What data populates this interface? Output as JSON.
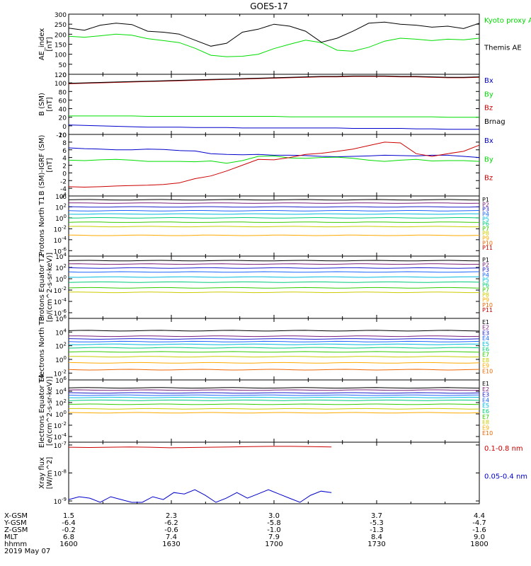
{
  "title": "GOES-17",
  "colors": {
    "black": "#000000",
    "green": "#00dd00",
    "blue": "#0000cc",
    "red": "#cc0000",
    "channels": [
      "#000000",
      "#7a1f7a",
      "#1a1acc",
      "#1a66ff",
      "#00bbdd",
      "#00cc77",
      "#33cc00",
      "#cccc00",
      "#ffaa00",
      "#ee6600",
      "#cc0000"
    ]
  },
  "chart_data": [
    {
      "type": "line",
      "id": "ae",
      "ylabel": "AE_index [nT]",
      "ylim": [
        0,
        300
      ],
      "yticks": [
        "0",
        "50",
        "100",
        "150",
        "200",
        "250",
        "300"
      ],
      "log": false,
      "series": [
        {
          "name": "Kyoto proxy AE",
          "color": "green",
          "values": [
            190,
            185,
            192,
            200,
            195,
            178,
            168,
            158,
            130,
            95,
            88,
            90,
            100,
            128,
            150,
            170,
            158,
            120,
            115,
            135,
            165,
            180,
            175,
            168,
            175,
            172,
            180
          ]
        },
        {
          "name": "Themis AE",
          "color": "black",
          "values": [
            230,
            220,
            245,
            255,
            248,
            215,
            210,
            200,
            170,
            140,
            155,
            210,
            225,
            250,
            240,
            215,
            160,
            180,
            215,
            255,
            260,
            250,
            245,
            235,
            240,
            228,
            255
          ]
        }
      ],
      "legend": [
        {
          "text": "Kyoto proxy AE",
          "color": "green"
        },
        {
          "text": "Themis AE",
          "color": "black"
        }
      ]
    },
    {
      "type": "line",
      "id": "bsm",
      "ylabel": "B (SM) [nT]",
      "ylim": [
        -20,
        120
      ],
      "yticks": [
        "-20",
        "0",
        "20",
        "40",
        "60",
        "80",
        "100",
        "120"
      ],
      "log": false,
      "series": [
        {
          "name": "Bz",
          "color": "red",
          "values": [
            98,
            99,
            100,
            101,
            102,
            103,
            104,
            105,
            106,
            107,
            108,
            109,
            110,
            111,
            112,
            113,
            114,
            114,
            115,
            115,
            115,
            114,
            114,
            113,
            112,
            112,
            113
          ]
        },
        {
          "name": "Brnag",
          "color": "black",
          "values": [
            99,
            100,
            101,
            102,
            103,
            104,
            105,
            106,
            107,
            108,
            109,
            110,
            111,
            112,
            113,
            114,
            115,
            115,
            116,
            116,
            116,
            115,
            115,
            114,
            113,
            113,
            114
          ]
        },
        {
          "name": "By",
          "color": "green",
          "values": [
            23,
            23,
            23,
            23,
            23,
            22,
            22,
            22,
            22,
            22,
            22,
            22,
            22,
            22,
            21,
            21,
            21,
            21,
            21,
            21,
            21,
            21,
            21,
            21,
            20,
            20,
            20
          ]
        },
        {
          "name": "Bx",
          "color": "blue",
          "values": [
            2,
            1,
            0,
            -1,
            -2,
            -3,
            -3,
            -3,
            -4,
            -4,
            -4,
            -5,
            -5,
            -5,
            -5,
            -5,
            -5,
            -5,
            -6,
            -6,
            -6,
            -6,
            -7,
            -7,
            -8,
            -8,
            -8
          ]
        }
      ],
      "legend": [
        {
          "text": "Bx",
          "color": "blue"
        },
        {
          "text": "By",
          "color": "green"
        },
        {
          "text": "Bz",
          "color": "red"
        },
        {
          "text": "Brnag",
          "color": "black"
        }
      ]
    },
    {
      "type": "line",
      "id": "bigrf",
      "ylabel": "B (SM)-IGRF (SM) [nT]",
      "ylim": [
        -6,
        10
      ],
      "yticks": [
        "-6",
        "-4",
        "-2",
        "0",
        "2",
        "4",
        "6",
        "8",
        "10"
      ],
      "log": false,
      "series": [
        {
          "name": "Bx",
          "color": "blue",
          "values": [
            6.5,
            6.3,
            6.2,
            6.0,
            6.0,
            6.2,
            6.1,
            5.8,
            5.7,
            5.0,
            4.8,
            4.7,
            4.8,
            4.6,
            4.6,
            4.5,
            4.3,
            4.2,
            4.3,
            4.4,
            4.6,
            4.5,
            4.4,
            4.6,
            4.6,
            4.3,
            4.0
          ]
        },
        {
          "name": "By",
          "color": "green",
          "values": [
            3.3,
            3.2,
            3.4,
            3.5,
            3.3,
            3.0,
            3.0,
            3.0,
            2.9,
            3.1,
            2.5,
            3.2,
            4.3,
            4.4,
            3.9,
            3.8,
            4.0,
            4.1,
            3.8,
            3.3,
            3.0,
            3.3,
            3.5,
            3.1,
            3.2,
            3.2,
            3.0
          ]
        },
        {
          "name": "Bz",
          "color": "red",
          "values": [
            -3.6,
            -3.7,
            -3.6,
            -3.4,
            -3.3,
            -3.2,
            -3.0,
            -2.6,
            -1.5,
            -0.8,
            0.5,
            2.0,
            3.5,
            3.4,
            4.0,
            4.8,
            5.1,
            5.6,
            6.2,
            7.1,
            8.0,
            7.8,
            5.0,
            4.3,
            5.0,
            5.6,
            7.2
          ]
        }
      ],
      "legend": [
        {
          "text": "Bx",
          "color": "blue"
        },
        {
          "text": "By",
          "color": "green"
        },
        {
          "text": "Bz",
          "color": "red"
        }
      ]
    },
    {
      "type": "line",
      "id": "pnorth",
      "ylabel": "Protons North T1",
      "log": true,
      "ylim": [
        -7,
        4
      ],
      "yticks": [
        "10^4",
        "10^2",
        "10^0",
        "10^-2",
        "10^-4",
        "10^-6"
      ],
      "ytick_exps": [
        4,
        2,
        0,
        -2,
        -4,
        -6
      ],
      "levels": [
        3.3,
        2.7,
        2.0,
        1.3,
        0.7,
        0.0,
        -0.8,
        -1.6,
        -3.2
      ],
      "legend": [
        "P1",
        "P2",
        "P3",
        "P4",
        "P5",
        "P6",
        "P7",
        "P8",
        "P9",
        "P10",
        "P11"
      ]
    },
    {
      "type": "line",
      "id": "peq",
      "ylabel": "Protons Equator T2 [p/(cm^2-s-sr-keV)]",
      "log": true,
      "ylim": [
        -7,
        4
      ],
      "yticks": [
        "10^4",
        "10^2",
        "10^0",
        "10^-2",
        "10^-4",
        "10^-6"
      ],
      "ytick_exps": [
        4,
        2,
        0,
        -2,
        -4,
        -6
      ],
      "levels": [
        3.2,
        2.6,
        1.9,
        1.2,
        0.3,
        -0.6,
        -1.6,
        -2.4
      ],
      "legend": [
        "P1",
        "P2",
        "P3",
        "P4",
        "P5",
        "P6",
        "P7",
        "P8",
        "P9",
        "P10",
        "P11"
      ]
    },
    {
      "type": "line",
      "id": "enorth",
      "ylabel": "Electrons North T3",
      "log": true,
      "ylim": [
        -3,
        6
      ],
      "yticks": [
        "10^6",
        "10^4",
        "10^2",
        "10^0",
        "10^-2"
      ],
      "ytick_exps": [
        6,
        4,
        2,
        0,
        -2
      ],
      "levels": [
        4.2,
        3.4,
        3.0,
        2.6,
        2.2,
        1.7,
        1.1,
        0.4,
        -0.5,
        -1.5
      ],
      "legend": [
        "E1",
        "E2",
        "E3",
        "E4",
        "E5",
        "E6",
        "E7",
        "E8",
        "E9",
        "E10"
      ]
    },
    {
      "type": "line",
      "id": "eeq",
      "ylabel": "Electrons Equator T4 [e/(cm^2-s-sr-keV)]",
      "log": true,
      "ylim": [
        -5,
        6
      ],
      "yticks": [
        "10^6",
        "10^4",
        "10^2",
        "10^0",
        "10^-2",
        "10^-4"
      ],
      "ytick_exps": [
        6,
        4,
        2,
        0,
        -2,
        -4
      ],
      "levels": [
        4.6,
        4.2,
        3.7,
        3.3,
        2.9,
        2.4,
        1.7,
        0.9,
        0.2
      ],
      "legend": [
        "E1",
        "E2",
        "E3",
        "E4",
        "E5",
        "E6",
        "E7",
        "E8",
        "E9",
        "E10"
      ]
    },
    {
      "type": "line",
      "id": "xray",
      "ylabel": "Xray flux [W/m^2]",
      "log": true,
      "ylim": [
        -9.1,
        -6.9
      ],
      "yticks": [
        "10^-7",
        "10^-8",
        "10^-9"
      ],
      "ytick_exps": [
        -7,
        -8,
        -9
      ],
      "series": [
        {
          "name": "0.1-0.8 nm",
          "color": "red",
          "x_end": 0.64,
          "values": [
            -7.08,
            -7.09,
            -7.08,
            -7.07,
            -7.08,
            -7.1,
            -7.09,
            -7.08,
            -7.07,
            -7.06,
            -7.05,
            -7.05,
            -7.06,
            -7.07
          ]
        },
        {
          "name": "0.05-0.4 nm",
          "color": "blue",
          "x_end": 0.64,
          "values": [
            -8.95,
            -8.85,
            -8.9,
            -9.05,
            -8.85,
            -8.95,
            -9.05,
            -9.05,
            -8.85,
            -8.95,
            -8.7,
            -8.75,
            -8.6,
            -8.8,
            -9.05,
            -8.9,
            -8.7,
            -8.9,
            -8.75,
            -8.6,
            -8.75,
            -8.9,
            -9.05,
            -8.8,
            -8.65,
            -8.7
          ]
        }
      ],
      "legend": [
        {
          "text": "0.1-0.8 nm",
          "color": "red"
        },
        {
          "text": "0.05-0.4 nm",
          "color": "blue"
        }
      ]
    }
  ],
  "xaxis": {
    "row_labels": [
      "X-GSM",
      "Y-GSM",
      "Z-GSM",
      "MLT",
      "hhmm"
    ],
    "date": "2019 May 07",
    "ticks": [
      {
        "values": [
          "1.5",
          "-6.4",
          "-0.2",
          "6.8",
          "1600"
        ]
      },
      {
        "values": [
          "2.3",
          "-6.2",
          "-0.6",
          "7.4",
          "1630"
        ]
      },
      {
        "values": [
          "3.0",
          "-5.8",
          "-1.0",
          "7.9",
          "1700"
        ]
      },
      {
        "values": [
          "3.7",
          "-5.3",
          "-1.3",
          "8.4",
          "1730"
        ]
      },
      {
        "values": [
          "4.4",
          "-4.7",
          "-1.6",
          "9.0",
          "1800"
        ]
      }
    ]
  }
}
